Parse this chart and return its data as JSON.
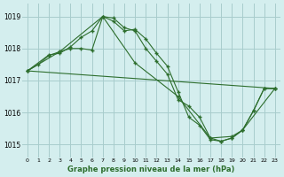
{
  "title": "Graphe pression niveau de la mer (hPa)",
  "bg_color": "#d4eeee",
  "grid_color": "#a8cccc",
  "line_color": "#2d6e2d",
  "xlim": [
    -0.5,
    23.5
  ],
  "ylim": [
    1014.6,
    1019.4
  ],
  "yticks": [
    1015,
    1016,
    1017,
    1018,
    1019
  ],
  "xticks": [
    0,
    1,
    2,
    3,
    4,
    5,
    6,
    7,
    8,
    9,
    10,
    11,
    12,
    13,
    14,
    15,
    16,
    17,
    18,
    19,
    20,
    21,
    22,
    23
  ],
  "series1": [
    [
      0,
      1017.3
    ],
    [
      2,
      1017.8
    ],
    [
      3,
      1017.85
    ],
    [
      4,
      1018.05
    ],
    [
      5,
      1018.35
    ],
    [
      6,
      1018.55
    ],
    [
      7,
      1019.0
    ],
    [
      8,
      1018.85
    ],
    [
      9,
      1018.55
    ],
    [
      10,
      1018.6
    ],
    [
      11,
      1018.3
    ],
    [
      12,
      1017.85
    ],
    [
      13,
      1017.45
    ],
    [
      14,
      1016.65
    ],
    [
      15,
      1015.85
    ],
    [
      16,
      1015.6
    ],
    [
      17,
      1015.15
    ],
    [
      18,
      1015.1
    ],
    [
      19,
      1015.2
    ],
    [
      20,
      1015.45
    ],
    [
      21,
      1016.05
    ],
    [
      22,
      1016.75
    ],
    [
      23,
      1016.75
    ]
  ],
  "series2": [
    [
      0,
      1017.3
    ],
    [
      1,
      1017.5
    ],
    [
      2,
      1017.78
    ],
    [
      3,
      1017.9
    ],
    [
      4,
      1018.0
    ],
    [
      5,
      1018.0
    ],
    [
      6,
      1017.95
    ],
    [
      7,
      1019.0
    ],
    [
      8,
      1018.95
    ],
    [
      9,
      1018.65
    ],
    [
      10,
      1018.55
    ],
    [
      11,
      1018.0
    ],
    [
      12,
      1017.6
    ],
    [
      13,
      1017.2
    ],
    [
      14,
      1016.4
    ],
    [
      15,
      1016.2
    ],
    [
      16,
      1015.85
    ],
    [
      17,
      1015.2
    ],
    [
      18,
      1015.1
    ],
    [
      19,
      1015.2
    ],
    [
      20,
      1015.45
    ],
    [
      21,
      1016.05
    ],
    [
      22,
      1016.75
    ],
    [
      23,
      1016.75
    ]
  ],
  "series3": [
    [
      0,
      1017.3
    ],
    [
      3,
      1017.9
    ],
    [
      7,
      1019.0
    ],
    [
      10,
      1017.55
    ],
    [
      14,
      1016.5
    ],
    [
      17,
      1015.2
    ],
    [
      19,
      1015.25
    ],
    [
      20,
      1015.45
    ],
    [
      23,
      1016.75
    ]
  ],
  "series4": [
    [
      0,
      1017.3
    ],
    [
      23,
      1016.75
    ]
  ]
}
